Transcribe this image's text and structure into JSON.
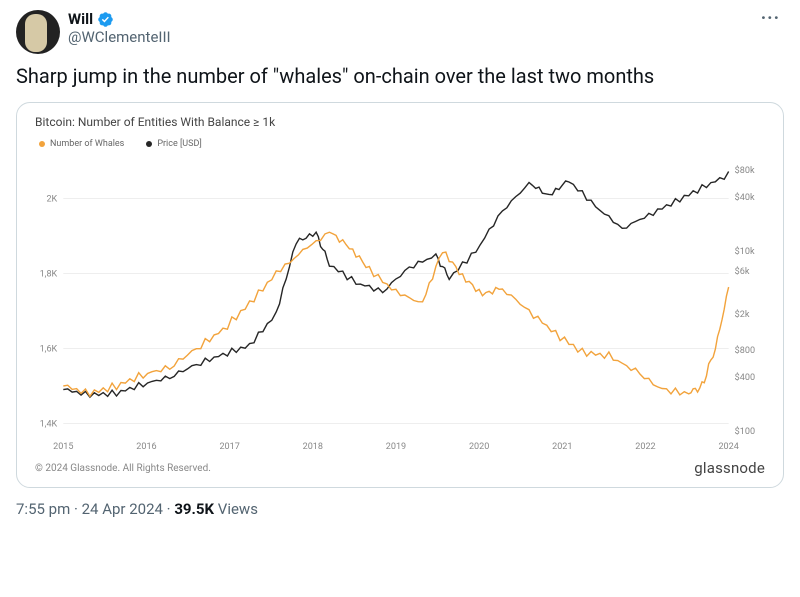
{
  "tweet": {
    "display_name": "Will",
    "handle": "@WClementeIII",
    "text": "Sharp jump in the number of \"whales\" on-chain over the last two months",
    "time": "7:55 pm",
    "date": "24 Apr 2024",
    "views": "39.5K",
    "views_label": "Views"
  },
  "card": {
    "title": "Bitcoin: Number of Entities With Balance ≥ 1k",
    "legend": {
      "whales_label": "Number of Whales",
      "price_label": "Price [USD]"
    },
    "copyright": "© 2024 Glassnode. All Rights Reserved.",
    "brand": "glassnode"
  },
  "chart": {
    "type": "dual-axis-line",
    "colors": {
      "whales": "#f2a33c",
      "price": "#262626",
      "grid": "#eeeeee",
      "axis_text": "#888888",
      "background": "#ffffff"
    },
    "line_width": 1.4,
    "x_axis": {
      "labels": [
        "2015",
        "2016",
        "2017",
        "2018",
        "2019",
        "2020",
        "2021",
        "2022",
        "2024"
      ]
    },
    "y_left": {
      "ticks": [
        "1,4K",
        "1,6K",
        "1,8K",
        "2K"
      ],
      "min": 1380,
      "max": 2100
    },
    "y_right": {
      "ticks": [
        "$100",
        "$400",
        "$800",
        "$2k",
        "$6k",
        "$10k",
        "$40k",
        "$80k"
      ],
      "scale": "log",
      "min_log10": 2.0,
      "max_log10": 5.0
    },
    "series_whales": [
      [
        0.0,
        1500
      ],
      [
        0.04,
        1480
      ],
      [
        0.08,
        1500
      ],
      [
        0.12,
        1530
      ],
      [
        0.16,
        1550
      ],
      [
        0.2,
        1600
      ],
      [
        0.24,
        1650
      ],
      [
        0.28,
        1720
      ],
      [
        0.32,
        1800
      ],
      [
        0.36,
        1860
      ],
      [
        0.4,
        1910
      ],
      [
        0.43,
        1870
      ],
      [
        0.46,
        1810
      ],
      [
        0.5,
        1750
      ],
      [
        0.54,
        1720
      ],
      [
        0.57,
        1860
      ],
      [
        0.6,
        1790
      ],
      [
        0.63,
        1740
      ],
      [
        0.66,
        1760
      ],
      [
        0.7,
        1700
      ],
      [
        0.74,
        1640
      ],
      [
        0.78,
        1590
      ],
      [
        0.82,
        1580
      ],
      [
        0.86,
        1540
      ],
      [
        0.9,
        1490
      ],
      [
        0.94,
        1480
      ],
      [
        0.96,
        1500
      ],
      [
        0.98,
        1600
      ],
      [
        1.0,
        1760
      ]
    ],
    "series_price_log10": [
      [
        0.0,
        2.46
      ],
      [
        0.04,
        2.4
      ],
      [
        0.08,
        2.42
      ],
      [
        0.12,
        2.52
      ],
      [
        0.16,
        2.6
      ],
      [
        0.2,
        2.74
      ],
      [
        0.24,
        2.85
      ],
      [
        0.28,
        2.95
      ],
      [
        0.32,
        3.3
      ],
      [
        0.35,
        4.1
      ],
      [
        0.38,
        4.2
      ],
      [
        0.4,
        3.85
      ],
      [
        0.44,
        3.65
      ],
      [
        0.48,
        3.55
      ],
      [
        0.52,
        3.82
      ],
      [
        0.56,
        3.95
      ],
      [
        0.58,
        3.7
      ],
      [
        0.62,
        4.0
      ],
      [
        0.66,
        4.45
      ],
      [
        0.7,
        4.75
      ],
      [
        0.73,
        4.6
      ],
      [
        0.76,
        4.78
      ],
      [
        0.8,
        4.5
      ],
      [
        0.84,
        4.25
      ],
      [
        0.88,
        4.4
      ],
      [
        0.92,
        4.55
      ],
      [
        0.96,
        4.7
      ],
      [
        1.0,
        4.85
      ]
    ]
  }
}
